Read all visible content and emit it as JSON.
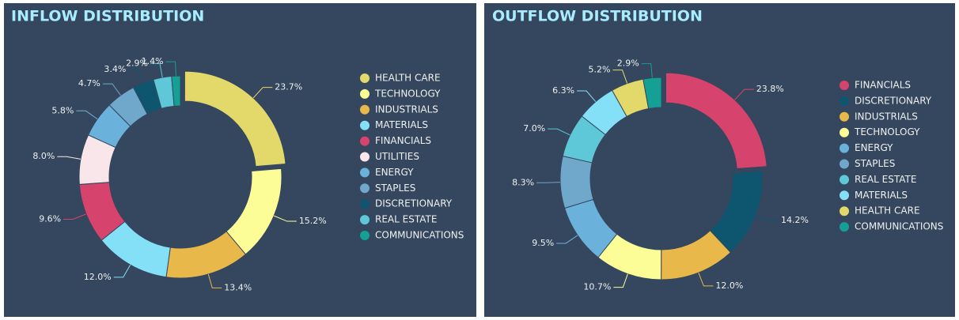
{
  "chart_data": [
    {
      "type": "pie",
      "title": "INFLOW DISTRIBUTION",
      "categories": [
        "HEALTH CARE",
        "TECHNOLOGY",
        "INDUSTRIALS",
        "MATERIALS",
        "FINANCIALS",
        "UTILITIES",
        "ENERGY",
        "STAPLES",
        "DISCRETIONARY",
        "REAL ESTATE",
        "COMMUNICATIONS"
      ],
      "values": [
        23.7,
        15.2,
        13.4,
        12.0,
        9.6,
        8.0,
        5.8,
        4.7,
        3.4,
        2.9,
        1.4
      ],
      "value_labels": [
        "23.7%",
        "15.2%",
        "13.4%",
        "12.0%",
        "9.6%",
        "8.0%",
        "5.8%",
        "4.7%",
        "3.4%",
        "2.9%",
        "1.4%"
      ],
      "colors": [
        "#e2d96a",
        "#fdfd98",
        "#e8b84a",
        "#84e0f7",
        "#d6436d",
        "#f8e6ea",
        "#6ab2dc",
        "#6fa8cb",
        "#0e5570",
        "#5ec8d8",
        "#14a095"
      ]
    },
    {
      "type": "pie",
      "title": "OUTFLOW DISTRIBUTION",
      "categories": [
        "FINANCIALS",
        "DISCRETIONARY",
        "INDUSTRIALS",
        "TECHNOLOGY",
        "ENERGY",
        "STAPLES",
        "REAL ESTATE",
        "MATERIALS",
        "HEALTH CARE",
        "COMMUNICATIONS"
      ],
      "values": [
        23.8,
        14.2,
        12.0,
        10.7,
        9.5,
        8.3,
        7.0,
        6.3,
        5.2,
        2.9
      ],
      "value_labels": [
        "23.8%",
        "14.2%",
        "12.0%",
        "10.7%",
        "9.5%",
        "8.3%",
        "7.0%",
        "6.3%",
        "5.2%",
        "2.9%"
      ],
      "colors": [
        "#d6436d",
        "#0e5570",
        "#e8b84a",
        "#fdfd98",
        "#6ab2dc",
        "#6fa8cb",
        "#5ec8d8",
        "#84e0f7",
        "#e2d96a",
        "#14a095"
      ]
    }
  ]
}
